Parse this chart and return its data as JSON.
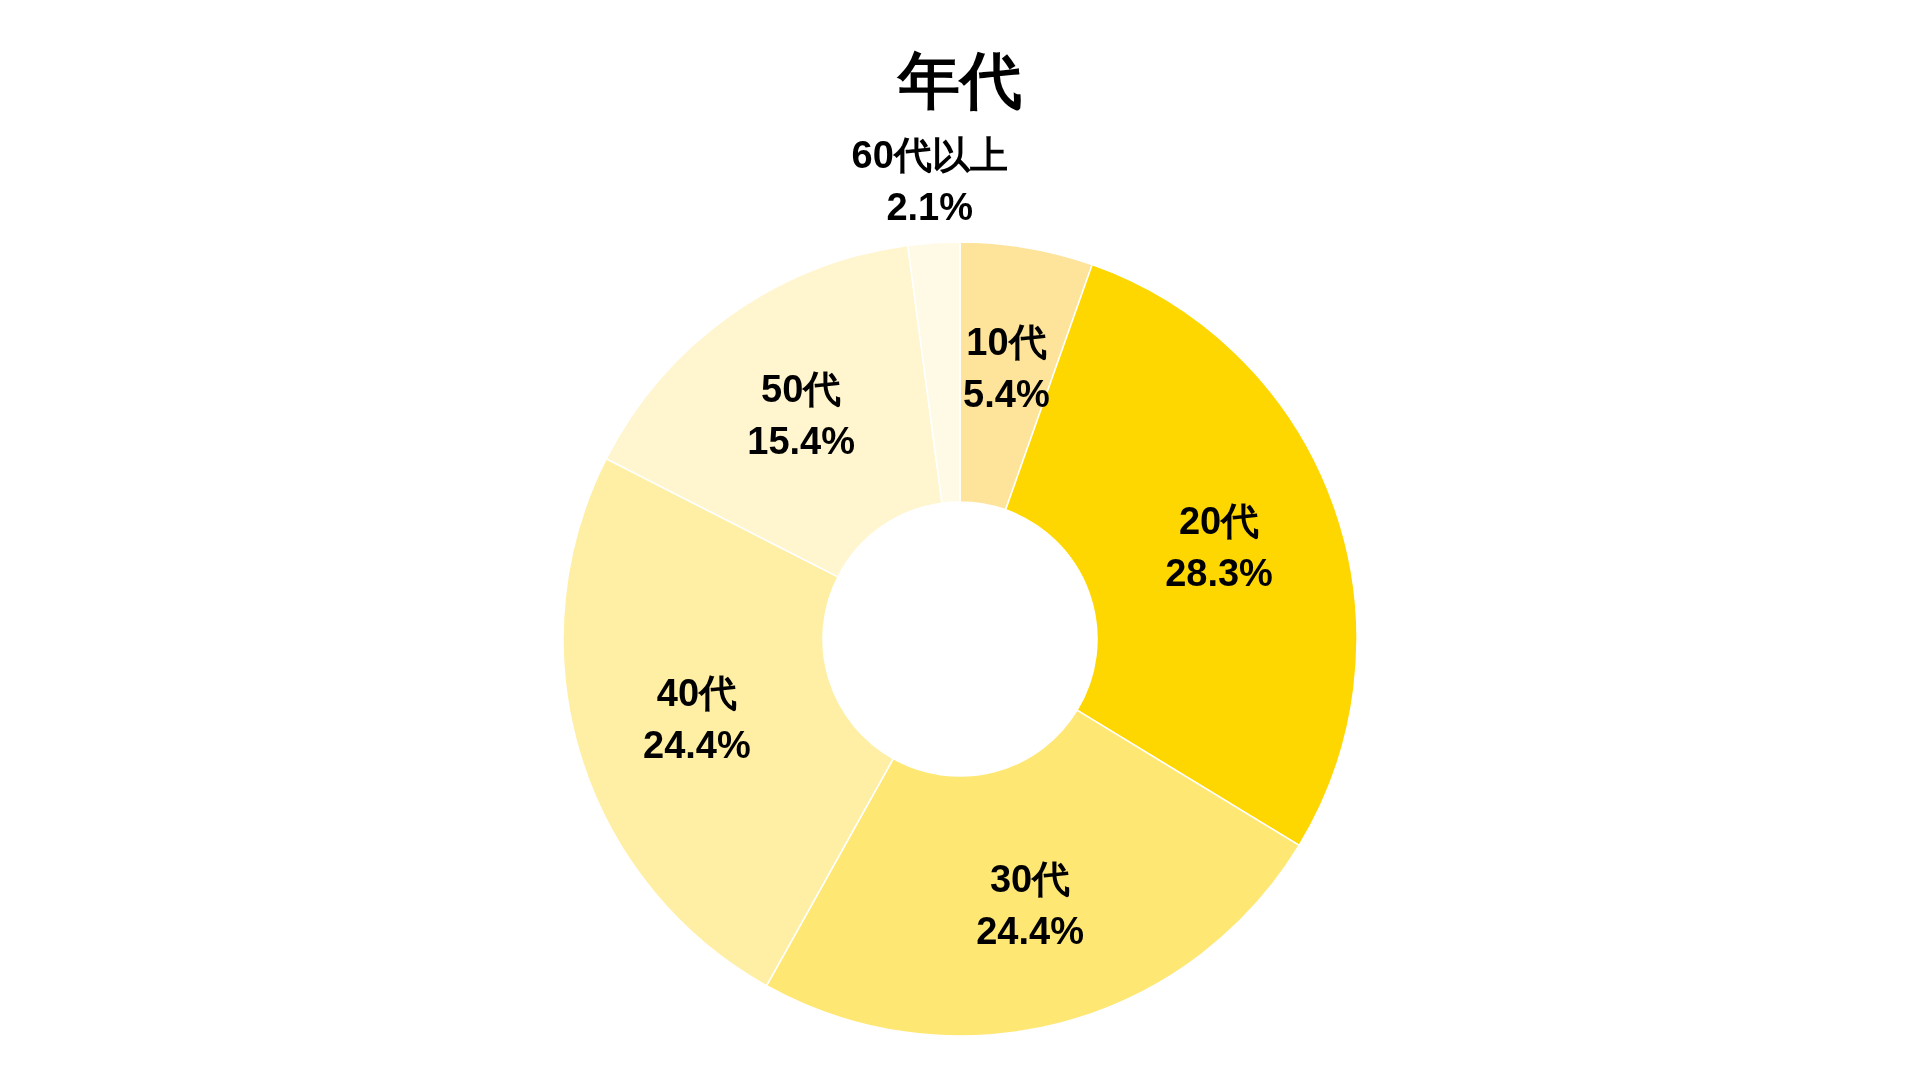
{
  "chart_data": {
    "type": "donut",
    "title": "年代",
    "categories": [
      "10代",
      "20代",
      "30代",
      "40代",
      "50代",
      "60代以上"
    ],
    "values": [
      5.4,
      28.3,
      24.4,
      24.4,
      15.4,
      2.1
    ],
    "colors": [
      "#fee39b",
      "#ffd700",
      "#ffe774",
      "#ffefa5",
      "#fff5ce",
      "#fffae6"
    ],
    "value_labels": [
      "5.4%",
      "28.3%",
      "24.4%",
      "24.4%",
      "15.4%",
      "2.1%"
    ]
  }
}
